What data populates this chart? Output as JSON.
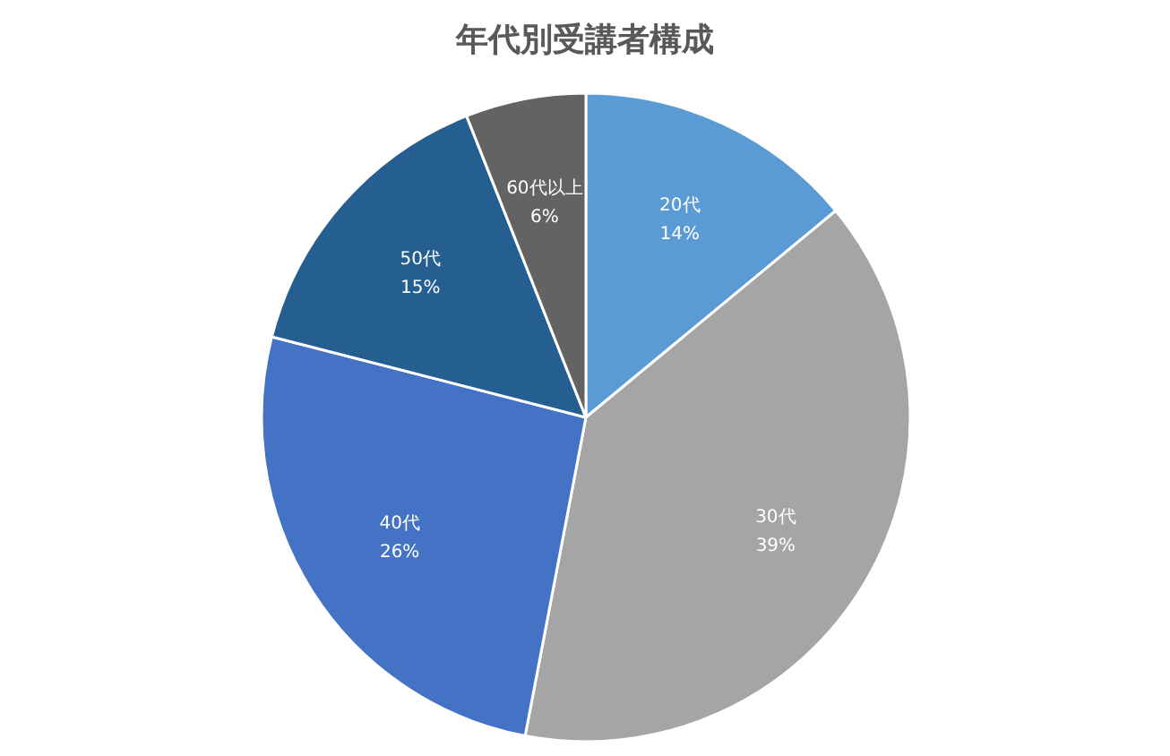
{
  "chart_data": {
    "type": "pie",
    "title": "年代別受講者構成",
    "categories": [
      "20代",
      "30代",
      "40代",
      "50代",
      "60代以上"
    ],
    "values": [
      14,
      39,
      26,
      15,
      6
    ],
    "value_labels": [
      "14%",
      "39%",
      "26%",
      "15%",
      "6%"
    ],
    "colors": [
      "#5b9bd5",
      "#a5a5a5",
      "#4472c4",
      "#255e91",
      "#636363"
    ]
  }
}
